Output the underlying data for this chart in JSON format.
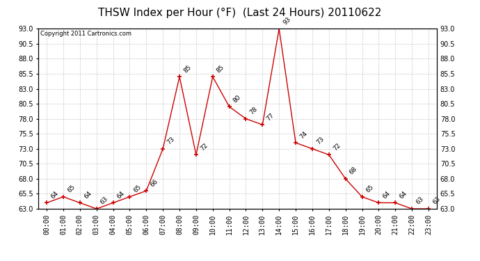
{
  "title": "THSW Index per Hour (°F)  (Last 24 Hours) 20110622",
  "copyright": "Copyright 2011 Cartronics.com",
  "hours": [
    "00:00",
    "01:00",
    "02:00",
    "03:00",
    "04:00",
    "05:00",
    "06:00",
    "07:00",
    "08:00",
    "09:00",
    "10:00",
    "11:00",
    "12:00",
    "13:00",
    "14:00",
    "15:00",
    "16:00",
    "17:00",
    "18:00",
    "19:00",
    "20:00",
    "21:00",
    "22:00",
    "23:00"
  ],
  "values": [
    64,
    65,
    64,
    63,
    64,
    65,
    66,
    73,
    85,
    72,
    85,
    80,
    78,
    77,
    93,
    74,
    73,
    72,
    68,
    65,
    64,
    64,
    63,
    63
  ],
  "ylim_min": 63.0,
  "ylim_max": 93.0,
  "yticks": [
    63.0,
    65.5,
    68.0,
    70.5,
    73.0,
    75.5,
    78.0,
    80.5,
    83.0,
    85.5,
    88.0,
    90.5,
    93.0
  ],
  "line_color": "#cc0000",
  "marker_color": "#cc0000",
  "bg_color": "#ffffff",
  "grid_color": "#c8c8c8",
  "title_fontsize": 11,
  "tick_fontsize": 7,
  "annot_fontsize": 6.5,
  "copyright_fontsize": 6
}
